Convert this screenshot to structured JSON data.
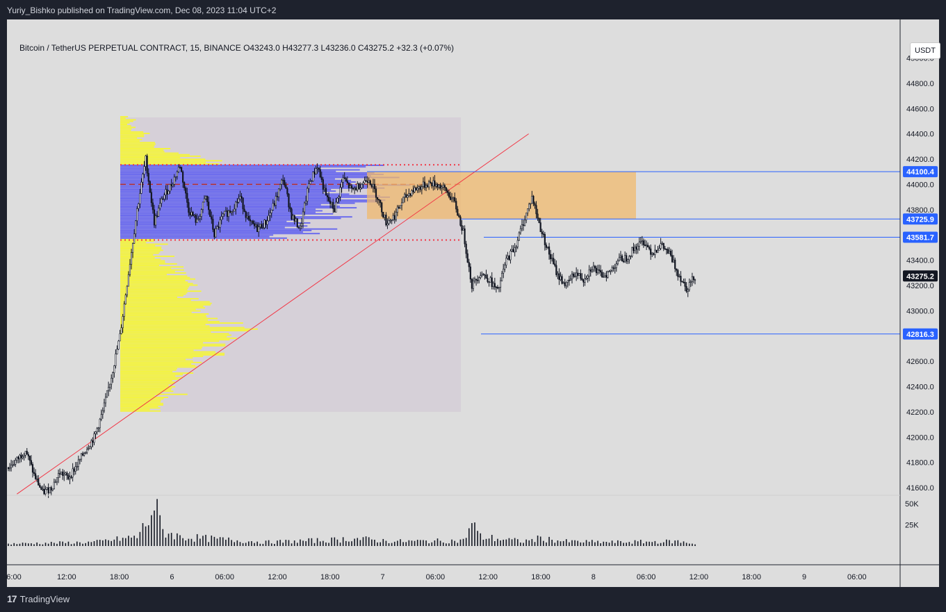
{
  "publisher": "Yuriy_Bishko published on TradingView.com, Dec 08, 2023 11:04 UTC+2",
  "brand": "TradingView",
  "symbol_header": "Bitcoin / TetherUS PERPETUAL CONTRACT, 15, BINANCE  O43243.0  H43277.3  L43236.0  C43275.2  +32.3 (+0.07%)",
  "currency": "USDT",
  "colors": {
    "background": "#dddddd",
    "frame": "#1e222d",
    "candle": "#131722",
    "level_line": "#2962ff",
    "profile_value_area": "#6666ee",
    "profile_outside": "#f5f53a",
    "zone": "#f0b96e",
    "trendline": "#f23645",
    "current_price_tag": "#131722"
  },
  "chart_data": {
    "type": "candlestick",
    "title": "Bitcoin / TetherUS PERPETUAL CONTRACT, 15, BINANCE",
    "ohlc_last": {
      "open": 43243.0,
      "high": 43277.3,
      "low": 43236.0,
      "close": 43275.2,
      "change": 32.3,
      "change_pct": 0.07
    },
    "y_axis": {
      "unit": "USDT",
      "ticks": [
        "45000.0",
        "44800.0",
        "44600.0",
        "44400.0",
        "44200.0",
        "44000.0",
        "43800.0",
        "43600.0",
        "43400.0",
        "43200.0",
        "43000.0",
        "42800.0",
        "42600.0",
        "42400.0",
        "42200.0",
        "42000.0",
        "41800.0",
        "41600.0"
      ],
      "range": [
        41540,
        45250
      ]
    },
    "x_axis": {
      "ticks": [
        "6:00",
        "12:00",
        "18:00",
        "6",
        "06:00",
        "12:00",
        "18:00",
        "7",
        "06:00",
        "12:00",
        "18:00",
        "8",
        "06:00",
        "12:00",
        "18:00",
        "9",
        "06:00"
      ]
    },
    "volume_axis": {
      "ticks": [
        "50K",
        "25K"
      ]
    },
    "price_levels": [
      {
        "value": 44100.4,
        "label": "44100.4"
      },
      {
        "value": 43725.9,
        "label": "43725.9"
      },
      {
        "value": 43581.7,
        "label": "43581.7"
      },
      {
        "value": 42816.3,
        "label": "42816.3"
      }
    ],
    "current_price": {
      "value": 43275.2,
      "label": "43275.2"
    },
    "price_path": [
      [
        0,
        41760
      ],
      [
        1,
        41820
      ],
      [
        2,
        41900
      ],
      [
        3,
        41700
      ],
      [
        4,
        41560
      ],
      [
        5,
        41600
      ],
      [
        6,
        41720
      ],
      [
        7,
        41680
      ],
      [
        8,
        41780
      ],
      [
        9,
        41900
      ],
      [
        10,
        42000
      ],
      [
        11,
        42200
      ],
      [
        12,
        42480
      ],
      [
        13,
        42800
      ],
      [
        14,
        43300
      ],
      [
        15,
        43800
      ],
      [
        16,
        44200
      ],
      [
        17,
        43700
      ],
      [
        18,
        43900
      ],
      [
        19,
        44000
      ],
      [
        20,
        44150
      ],
      [
        21,
        43800
      ],
      [
        22,
        43700
      ],
      [
        23,
        43900
      ],
      [
        24,
        43600
      ],
      [
        25,
        43750
      ],
      [
        26,
        43800
      ],
      [
        27,
        43900
      ],
      [
        28,
        43700
      ],
      [
        29,
        43650
      ],
      [
        30,
        43700
      ],
      [
        31,
        43850
      ],
      [
        32,
        44050
      ],
      [
        33,
        43750
      ],
      [
        34,
        43650
      ],
      [
        35,
        44000
      ],
      [
        36,
        44150
      ],
      [
        37,
        43900
      ],
      [
        38,
        43800
      ],
      [
        39,
        44050
      ],
      [
        40,
        43950
      ],
      [
        41,
        44000
      ],
      [
        42,
        44050
      ],
      [
        43,
        43900
      ],
      [
        44,
        43700
      ],
      [
        45,
        43750
      ],
      [
        46,
        43880
      ],
      [
        47,
        43950
      ],
      [
        48,
        43980
      ],
      [
        49,
        44010
      ],
      [
        50,
        44000
      ],
      [
        51,
        43950
      ],
      [
        52,
        43850
      ],
      [
        53,
        43620
      ],
      [
        54,
        43200
      ],
      [
        55,
        43300
      ],
      [
        56,
        43250
      ],
      [
        57,
        43150
      ],
      [
        58,
        43400
      ],
      [
        59,
        43500
      ],
      [
        60,
        43700
      ],
      [
        61,
        43900
      ],
      [
        62,
        43650
      ],
      [
        63,
        43450
      ],
      [
        64,
        43280
      ],
      [
        65,
        43200
      ],
      [
        66,
        43300
      ],
      [
        67,
        43250
      ],
      [
        68,
        43350
      ],
      [
        69,
        43280
      ],
      [
        70,
        43300
      ],
      [
        71,
        43400
      ],
      [
        72,
        43420
      ],
      [
        73,
        43500
      ],
      [
        74,
        43550
      ],
      [
        75,
        43460
      ],
      [
        76,
        43520
      ],
      [
        77,
        43450
      ],
      [
        78,
        43300
      ],
      [
        79,
        43180
      ],
      [
        80,
        43275
      ]
    ],
    "candles_count": 81,
    "volume_path": [
      [
        0,
        3000
      ],
      [
        10,
        5000
      ],
      [
        15,
        12000
      ],
      [
        16,
        28000
      ],
      [
        17,
        54000
      ],
      [
        18,
        20000
      ],
      [
        20,
        12000
      ],
      [
        30,
        5000
      ],
      [
        38,
        8000
      ],
      [
        40,
        10000
      ],
      [
        45,
        6000
      ],
      [
        53,
        7000
      ],
      [
        54,
        30000
      ],
      [
        55,
        12000
      ],
      [
        60,
        6000
      ],
      [
        62,
        10000
      ],
      [
        65,
        6000
      ],
      [
        70,
        5000
      ],
      [
        78,
        6000
      ],
      [
        80,
        3000
      ]
    ],
    "volume_range": [
      0,
      60000
    ],
    "volume_profile": {
      "price_range": [
        42200,
        44530
      ],
      "value_area": [
        43560,
        44155
      ],
      "poc": 44000
    },
    "zone": {
      "low": 43725.9,
      "high": 44100.4
    },
    "trendline": {
      "from": [
        1,
        41550
      ],
      "to": [
        59,
        44400
      ]
    }
  }
}
